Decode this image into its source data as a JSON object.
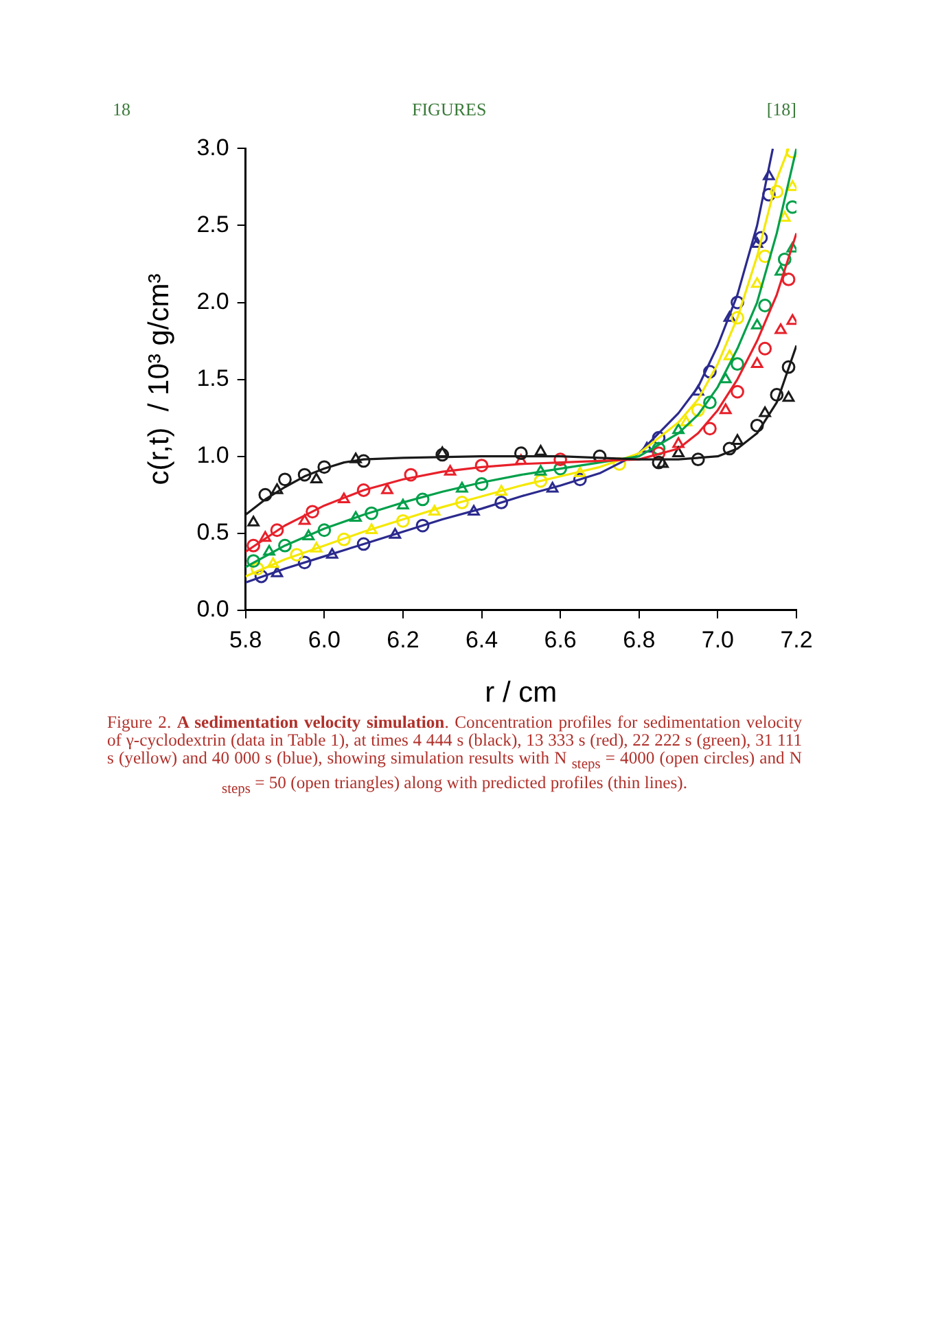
{
  "chart_data": {
    "type": "line",
    "title": "A sedimentation velocity simulation",
    "xlabel": "r / cm",
    "ylabel": "c(r,t)  / 10³ g/cm³",
    "annotations": [
      "18",
      "FIGURES",
      "[18]",
      "Figure 2.",
      ". Concentration profiles for sedimentation velocity of γ-cyclodextrin (data in Table 1), at times 4 444 s (black), 13 333 s (red), 22 222 s (green), 31 111 s (yellow) and 40 000 s (blue), showing simulation results with N $_{steps}$ = 4000 (open circles) and N $_{steps}$ = 50 (open triangles) along with predicted profiles (thin lines)."
    ],
    "xlim": [
      5.8,
      7.2
    ],
    "ylim": [
      0,
      3
    ],
    "xticks": [
      {
        "value": 5.8,
        "label": "5.8"
      },
      {
        "value": 6,
        "label": "6.0"
      },
      {
        "value": 6.2,
        "label": "6.2"
      },
      {
        "value": 6.4,
        "label": "6.4"
      },
      {
        "value": 6.6,
        "label": "6.6"
      },
      {
        "value": 6.8,
        "label": "6.8"
      },
      {
        "value": 7,
        "label": "7.0"
      },
      {
        "value": 7.2,
        "label": "7.2"
      }
    ],
    "yticks": [
      {
        "value": 0,
        "label": "0.0"
      },
      {
        "value": 0.5,
        "label": "0.5"
      },
      {
        "value": 1,
        "label": "1.0"
      },
      {
        "value": 1.5,
        "label": "1.5"
      },
      {
        "value": 2,
        "label": "2.0"
      },
      {
        "value": 2.5,
        "label": "2.5"
      },
      {
        "value": 3,
        "label": "3.0"
      }
    ],
    "grid": false,
    "legend": false,
    "series": [
      {
        "type": "line",
        "marker": "none",
        "color": "#1a1a1a",
        "x": [
          5.8,
          5.85,
          5.9,
          5.95,
          6.0,
          6.05,
          6.1,
          6.2,
          6.4,
          6.6,
          6.8,
          6.9,
          7.0,
          7.05,
          7.1,
          7.15,
          7.2
        ],
        "values": [
          0.62,
          0.72,
          0.8,
          0.87,
          0.92,
          0.96,
          0.98,
          0.99,
          1.0,
          1.0,
          0.98,
          0.98,
          1.0,
          1.05,
          1.15,
          1.35,
          1.72
        ]
      },
      {
        "type": "line",
        "marker": "none",
        "color": "#e8202a",
        "x": [
          5.8,
          5.9,
          6.0,
          6.1,
          6.2,
          6.3,
          6.4,
          6.5,
          6.6,
          6.7,
          6.8,
          6.9,
          6.95,
          7.0,
          7.05,
          7.1,
          7.15,
          7.2
        ],
        "values": [
          0.38,
          0.55,
          0.68,
          0.78,
          0.85,
          0.9,
          0.93,
          0.95,
          0.96,
          0.97,
          0.98,
          1.05,
          1.15,
          1.3,
          1.5,
          1.75,
          2.05,
          2.45
        ]
      },
      {
        "type": "line",
        "marker": "none",
        "color": "#00a04a",
        "x": [
          5.8,
          5.9,
          6.0,
          6.1,
          6.2,
          6.3,
          6.4,
          6.5,
          6.6,
          6.7,
          6.8,
          6.9,
          6.95,
          7.0,
          7.05,
          7.1,
          7.15,
          7.2
        ],
        "values": [
          0.28,
          0.42,
          0.53,
          0.62,
          0.7,
          0.77,
          0.83,
          0.88,
          0.92,
          0.96,
          1.0,
          1.15,
          1.27,
          1.45,
          1.7,
          2.0,
          2.45,
          3.0
        ]
      },
      {
        "type": "line",
        "marker": "none",
        "color": "#f5e800",
        "x": [
          5.8,
          5.9,
          6.0,
          6.1,
          6.2,
          6.3,
          6.4,
          6.5,
          6.6,
          6.7,
          6.8,
          6.9,
          6.95,
          7.0,
          7.05,
          7.1,
          7.15,
          7.18
        ],
        "values": [
          0.22,
          0.33,
          0.42,
          0.51,
          0.59,
          0.67,
          0.74,
          0.81,
          0.87,
          0.93,
          1.02,
          1.22,
          1.37,
          1.6,
          1.9,
          2.3,
          2.8,
          3.0
        ]
      },
      {
        "type": "line",
        "marker": "none",
        "color": "#2b2a8e",
        "x": [
          5.8,
          5.9,
          6.0,
          6.1,
          6.2,
          6.3,
          6.4,
          6.5,
          6.6,
          6.7,
          6.8,
          6.9,
          6.95,
          7.0,
          7.05,
          7.1,
          7.14
        ],
        "values": [
          0.18,
          0.27,
          0.35,
          0.43,
          0.51,
          0.59,
          0.66,
          0.74,
          0.81,
          0.89,
          1.02,
          1.28,
          1.45,
          1.72,
          2.05,
          2.5,
          3.0
        ]
      },
      {
        "type": "scatter",
        "marker": "circle",
        "color": "#1a1a1a",
        "x": [
          5.85,
          5.9,
          5.95,
          6.0,
          6.1,
          6.3,
          6.5,
          6.7,
          6.85,
          6.95,
          7.03,
          7.1,
          7.15,
          7.18
        ],
        "values": [
          0.75,
          0.85,
          0.88,
          0.93,
          0.97,
          1.01,
          1.02,
          1.0,
          0.96,
          0.98,
          1.05,
          1.2,
          1.4,
          1.58
        ]
      },
      {
        "type": "scatter",
        "marker": "triangle",
        "color": "#1a1a1a",
        "x": [
          5.82,
          5.88,
          5.98,
          6.08,
          6.3,
          6.55,
          6.86,
          6.9,
          7.05,
          7.12,
          7.18
        ],
        "values": [
          0.57,
          0.78,
          0.85,
          0.98,
          1.02,
          1.03,
          0.95,
          1.02,
          1.1,
          1.28,
          1.38
        ]
      },
      {
        "type": "scatter",
        "marker": "circle",
        "color": "#e8202a",
        "x": [
          5.82,
          5.88,
          5.97,
          6.1,
          6.22,
          6.4,
          6.6,
          6.85,
          6.98,
          7.05,
          7.12,
          7.18
        ],
        "values": [
          0.42,
          0.52,
          0.64,
          0.78,
          0.88,
          0.94,
          0.98,
          1.02,
          1.18,
          1.42,
          1.7,
          2.15
        ]
      },
      {
        "type": "scatter",
        "marker": "triangle",
        "color": "#e8202a",
        "x": [
          5.85,
          5.95,
          6.05,
          6.16,
          6.32,
          6.5,
          6.9,
          7.02,
          7.1,
          7.16,
          7.19
        ],
        "values": [
          0.47,
          0.58,
          0.72,
          0.78,
          0.9,
          0.97,
          1.08,
          1.3,
          1.6,
          1.82,
          1.88
        ]
      },
      {
        "type": "scatter",
        "marker": "circle",
        "color": "#00a04a",
        "x": [
          5.82,
          5.9,
          6.0,
          6.12,
          6.25,
          6.4,
          6.6,
          6.85,
          6.98,
          7.05,
          7.12,
          7.17,
          7.19
        ],
        "values": [
          0.32,
          0.42,
          0.52,
          0.63,
          0.72,
          0.82,
          0.92,
          1.05,
          1.35,
          1.6,
          1.98,
          2.28,
          2.62
        ]
      },
      {
        "type": "scatter",
        "marker": "triangle",
        "color": "#00a04a",
        "x": [
          5.86,
          5.96,
          6.08,
          6.2,
          6.35,
          6.55,
          6.9,
          7.02,
          7.1,
          7.16,
          7.19
        ],
        "values": [
          0.38,
          0.48,
          0.6,
          0.68,
          0.79,
          0.9,
          1.17,
          1.5,
          1.85,
          2.2,
          2.35
        ]
      },
      {
        "type": "scatter",
        "marker": "circle",
        "color": "#f5e800",
        "x": [
          5.83,
          5.93,
          6.05,
          6.2,
          6.35,
          6.55,
          6.75,
          6.95,
          7.05,
          7.12,
          7.15,
          7.19
        ],
        "values": [
          0.27,
          0.36,
          0.46,
          0.58,
          0.7,
          0.84,
          0.95,
          1.3,
          1.9,
          2.3,
          2.72,
          2.98
        ]
      },
      {
        "type": "scatter",
        "marker": "triangle",
        "color": "#f5e800",
        "x": [
          5.87,
          5.98,
          6.12,
          6.28,
          6.45,
          6.65,
          6.92,
          7.03,
          7.1,
          7.17,
          7.19
        ],
        "values": [
          0.3,
          0.4,
          0.52,
          0.64,
          0.77,
          0.89,
          1.22,
          1.65,
          2.12,
          2.55,
          2.75
        ]
      },
      {
        "type": "scatter",
        "marker": "circle",
        "color": "#2b2a8e",
        "x": [
          5.84,
          5.95,
          6.1,
          6.25,
          6.45,
          6.65,
          6.85,
          6.98,
          7.05,
          7.11,
          7.13
        ],
        "values": [
          0.22,
          0.31,
          0.43,
          0.55,
          0.7,
          0.85,
          1.12,
          1.55,
          2.0,
          2.42,
          2.7
        ]
      },
      {
        "type": "scatter",
        "marker": "triangle",
        "color": "#2b2a8e",
        "x": [
          5.88,
          6.02,
          6.18,
          6.38,
          6.58,
          6.82,
          6.95,
          7.03,
          7.1,
          7.13
        ],
        "values": [
          0.24,
          0.36,
          0.49,
          0.64,
          0.79,
          1.05,
          1.42,
          1.9,
          2.38,
          2.82
        ]
      }
    ]
  }
}
